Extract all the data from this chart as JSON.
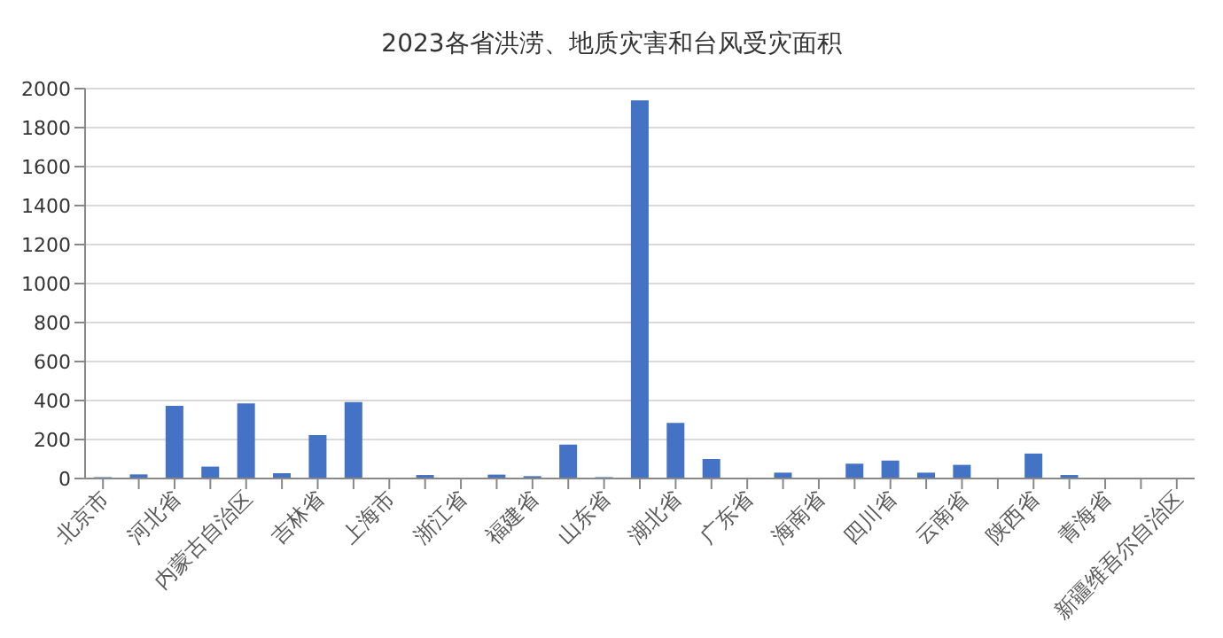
{
  "chart_data": {
    "type": "bar",
    "title": "2023各省洪涝、地质灾害和台风受灾面积",
    "categories": [
      "北京市",
      null,
      "河北省",
      null,
      "内蒙古自治区",
      null,
      "吉林省",
      null,
      "上海市",
      null,
      "浙江省",
      null,
      "福建省",
      null,
      "山东省",
      null,
      "湖北省",
      null,
      "广东省",
      null,
      "海南省",
      null,
      "四川省",
      null,
      "云南省",
      null,
      "陕西省",
      null,
      "青海省",
      null,
      "新疆维吾尔自治区"
    ],
    "values": [
      7,
      21,
      373,
      61,
      385,
      27,
      223,
      392,
      0,
      18,
      2,
      20,
      12,
      174,
      7,
      1940,
      285,
      100,
      3,
      30,
      0,
      76,
      92,
      30,
      70,
      2,
      128,
      18,
      0,
      0,
      0
    ],
    "color": "#4472c4",
    "ylim": [
      0,
      2000
    ],
    "yticks": [
      0,
      200,
      400,
      600,
      800,
      1000,
      1200,
      1400,
      1600,
      1800,
      2000
    ],
    "grid": "y"
  }
}
